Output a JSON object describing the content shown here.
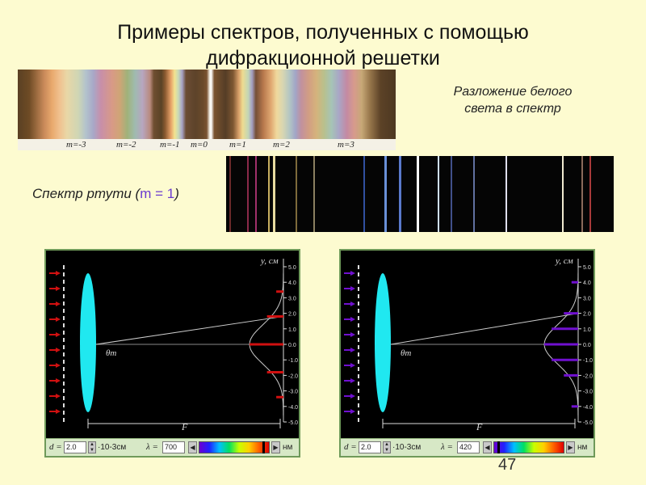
{
  "title": {
    "line1": "Примеры спектров, полученных с помощью",
    "line2": "дифракционной решетки"
  },
  "white_spectrum": {
    "caption_line1": "Разложение белого",
    "caption_line2": "света в спектр",
    "order_labels": [
      "m=-3",
      "m=-2",
      "m=-1",
      "m=0",
      "m=1",
      "m=2",
      "m=3"
    ]
  },
  "mercury_spectrum": {
    "caption_prefix": "Спектр ртути (",
    "caption_m": "m = 1",
    "caption_suffix": ")"
  },
  "panels": [
    {
      "y_axis_label": "y, см",
      "theta_label": "θm",
      "focal_label": "F",
      "y_ticks": [
        "5.0",
        "4.0",
        "3.0",
        "2.0",
        "1.0",
        "0.0",
        "-1.0",
        "-2.0",
        "-3.0",
        "-4.0",
        "-5.0"
      ],
      "beam_color": "#d01010",
      "peak_positions_cm": [
        3.4,
        1.8,
        0.0,
        -1.8,
        -3.4
      ],
      "controls": {
        "d_label": "d =",
        "d_value": "2.0",
        "d_unit": "·10-3см",
        "lambda_label": "λ =",
        "lambda_value": "700",
        "lambda_unit": "нм"
      }
    },
    {
      "y_axis_label": "y, см",
      "theta_label": "θm",
      "focal_label": "F",
      "y_ticks": [
        "5.0",
        "4.0",
        "3.0",
        "2.0",
        "1.0",
        "0.0",
        "-1.0",
        "-2.0",
        "-3.0",
        "-4.0",
        "-5.0"
      ],
      "beam_color": "#7010d0",
      "peak_positions_cm": [
        4.0,
        2.0,
        1.0,
        0.0,
        -1.0,
        -2.0,
        -4.0
      ],
      "controls": {
        "d_label": "d =",
        "d_value": "2.0",
        "d_unit": "·10-3см",
        "lambda_label": "λ =",
        "lambda_value": "420",
        "lambda_unit": "нм"
      }
    }
  ],
  "slide_number": "47"
}
